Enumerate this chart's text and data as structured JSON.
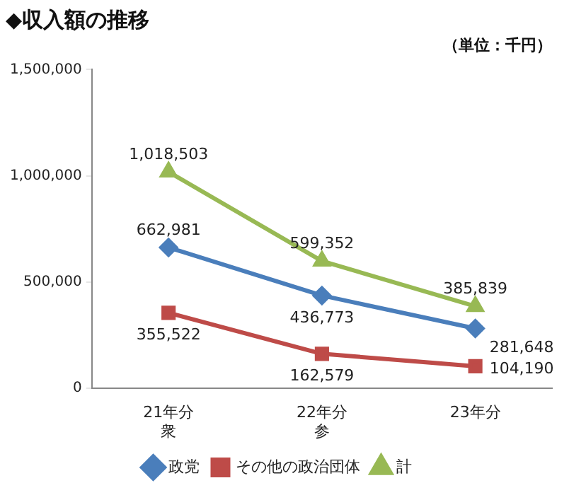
{
  "chart_data": {
    "type": "line",
    "title": "◆収入額の推移",
    "subtitle": "（単位：千円）",
    "categories": [
      "21年分衆",
      "22年分参",
      "23年分"
    ],
    "series": [
      {
        "name": "政党",
        "color": "#4a7ebb",
        "marker": "diamond",
        "values": [
          662981,
          436773,
          281648
        ],
        "value_labels": [
          "662,981",
          "436,773",
          "281,648"
        ]
      },
      {
        "name": "その他の政治団体",
        "color": "#be4b48",
        "marker": "square",
        "values": [
          355522,
          162579,
          104190
        ],
        "value_labels": [
          "355,522",
          "162,579",
          "104,190"
        ]
      },
      {
        "name": "計",
        "color": "#98b954",
        "marker": "triangle",
        "values": [
          1018503,
          599352,
          385839
        ],
        "value_labels": [
          "1,018,503",
          "599,352",
          "385,839"
        ]
      }
    ],
    "ylim": [
      0,
      1500000
    ],
    "yticks": [
      {
        "value": 0,
        "label": "0"
      },
      {
        "value": 500000,
        "label": "500,000"
      },
      {
        "value": 1000000,
        "label": "1,000,000"
      },
      {
        "value": 1500000,
        "label": "1,500,000"
      }
    ],
    "grid": false,
    "legend": "bottom",
    "line_style": "solid"
  }
}
